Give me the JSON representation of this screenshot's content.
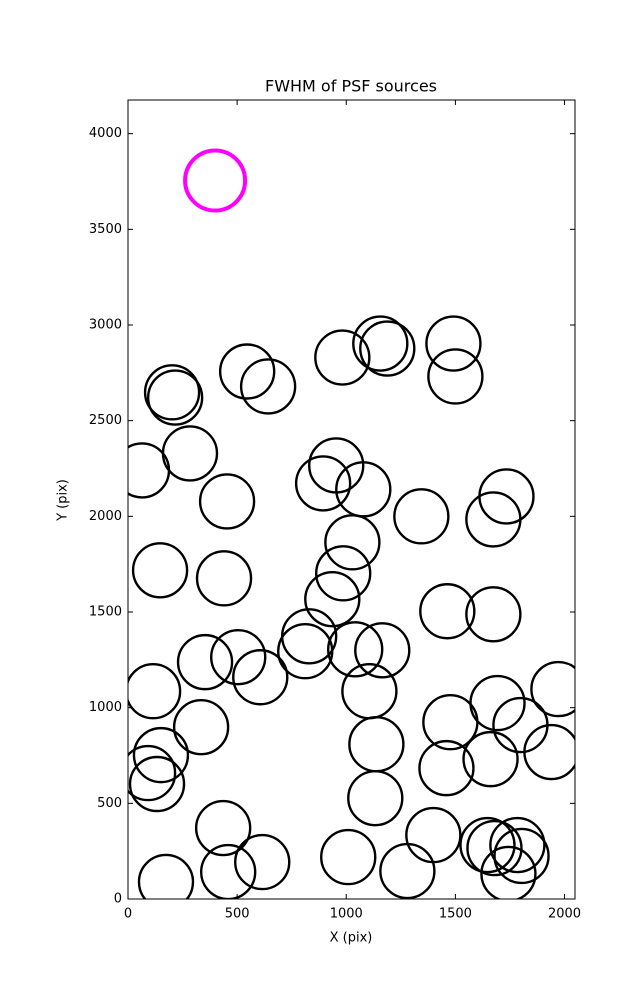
{
  "chart_data": {
    "type": "scatter",
    "title": "FWHM of PSF sources",
    "x_label": "X (pix)",
    "y_label": "Y (pix)",
    "xlim": [
      0,
      2048
    ],
    "ylim": [
      0,
      4176
    ],
    "xticks": [
      0,
      500,
      1000,
      1500,
      2000
    ],
    "yticks": [
      0,
      500,
      1000,
      1500,
      2000,
      2500,
      3000,
      3500,
      4000
    ],
    "series": [
      {
        "color": "#000000",
        "x": [
          982,
          1156,
          1188,
          1491,
          1500,
          546,
          642,
          202,
          216,
          64,
          284,
          454,
          894,
          954,
          1078,
          1344,
          1734,
          1674,
          1028,
          986,
          936,
          147,
          440,
          1463,
          1674,
          830,
          812,
          1041,
          1165,
          353,
          505,
          606,
          115,
          1106,
          1693,
          1972,
          1477,
          1798,
          335,
          1138,
          151,
          1661,
          1940,
          1459,
          92,
          133,
          1133,
          436,
          1399,
          1647,
          1784,
          1679,
          1803,
          1009,
          615,
          459,
          1280,
          1743,
          174
        ],
        "values": [
          2830,
          2903,
          2877,
          2903,
          2731,
          2757,
          2679,
          2648,
          2621,
          2240,
          2329,
          2078,
          2172,
          2266,
          2141,
          2000,
          2104,
          1984,
          1864,
          1702,
          1567,
          1718,
          1676,
          1504,
          1488,
          1373,
          1295,
          1305,
          1300,
          1238,
          1264,
          1159,
          1086,
          1086,
          1024,
          1097,
          924,
          909,
          898,
          809,
          752,
          731,
          768,
          684,
          658,
          601,
          527,
          371,
          334,
          282,
          282,
          266,
          225,
          219,
          193,
          141,
          146,
          131,
          89
        ]
      },
      {
        "color": "#ff00ff",
        "x": [
          399
        ],
        "values": [
          3755
        ]
      }
    ]
  }
}
